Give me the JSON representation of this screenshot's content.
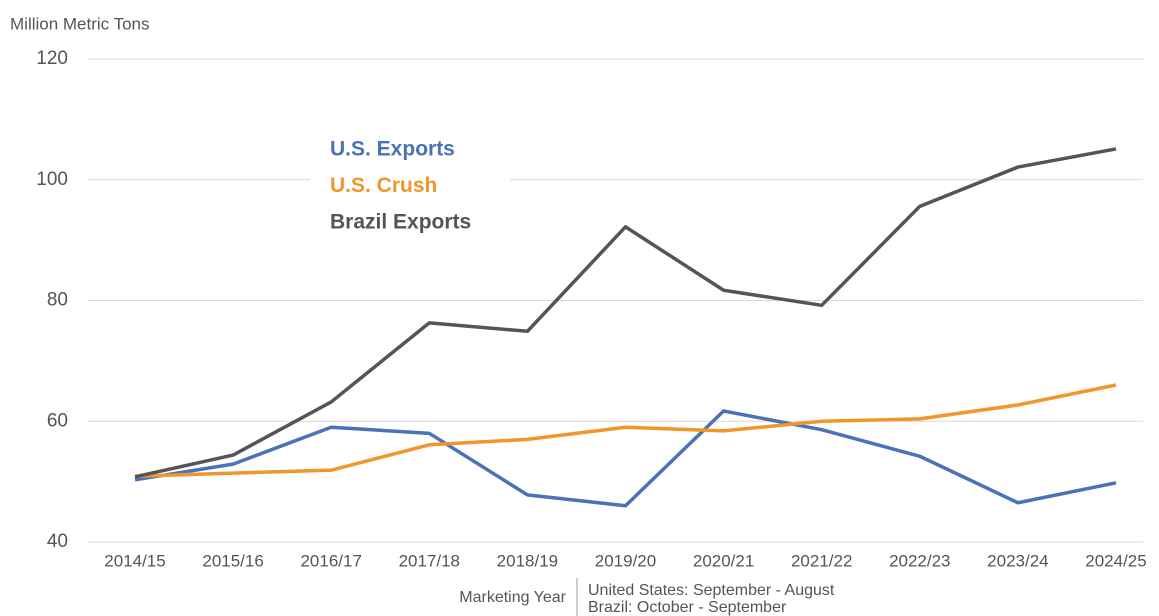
{
  "chart_data": {
    "type": "line",
    "y_label": "Million Metric Tons",
    "x_label": "Marketing Year",
    "notes": [
      "United States: September - August",
      "Brazil: October - September"
    ],
    "categories": [
      "2014/15",
      "2015/16",
      "2016/17",
      "2017/18",
      "2018/19",
      "2019/20",
      "2020/21",
      "2021/22",
      "2022/23",
      "2023/24",
      "2024/25"
    ],
    "series": [
      {
        "name": "U.S. Exports",
        "color": "#4a72b8",
        "values": [
          50.3,
          52.9,
          59.0,
          58.0,
          47.8,
          46.0,
          61.7,
          58.6,
          54.2,
          46.5,
          49.8
        ]
      },
      {
        "name": "U.S. Crush",
        "color": "#f0962a",
        "values": [
          50.9,
          51.4,
          51.9,
          56.1,
          57.0,
          59.0,
          58.4,
          60.0,
          60.4,
          62.7,
          66.0
        ]
      },
      {
        "name": "Brazil Exports",
        "color": "#555555",
        "values": [
          50.8,
          54.4,
          63.2,
          76.3,
          74.9,
          92.2,
          81.7,
          79.2,
          95.6,
          102.1,
          105.1
        ]
      }
    ],
    "ylim": [
      40,
      120
    ],
    "yticks": [
      40,
      60,
      80,
      100,
      120
    ],
    "grid": true
  }
}
